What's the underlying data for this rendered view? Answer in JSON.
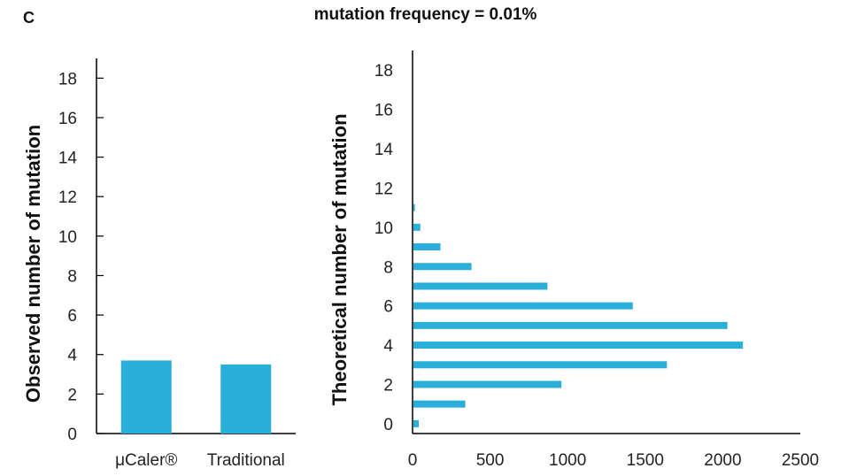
{
  "panel_label": "C",
  "title": "mutation frequency = 0.01%",
  "colors": {
    "bar": "#2aafdb",
    "axis": "#000000"
  },
  "chart_data": [
    {
      "type": "bar",
      "orientation": "vertical",
      "categories": [
        "μCaler®",
        "Traditional"
      ],
      "values": [
        3.7,
        3.5
      ],
      "ylabel": "Observed number of mutation",
      "xlabel": "",
      "ylim": [
        0,
        19
      ],
      "yticks": [
        0,
        2,
        4,
        6,
        8,
        10,
        12,
        14,
        16,
        18
      ],
      "grid": false
    },
    {
      "type": "bar",
      "orientation": "horizontal",
      "categories": [
        0,
        1,
        2,
        3,
        4,
        5,
        6,
        7,
        8,
        9,
        10,
        11
      ],
      "values": [
        40,
        340,
        960,
        1640,
        2130,
        2030,
        1420,
        870,
        380,
        180,
        50,
        15
      ],
      "ylabel": "Theoretical number of mutation",
      "xlabel": "",
      "xlim": [
        0,
        2500
      ],
      "xticks": [
        0,
        500,
        1000,
        1500,
        2000,
        2500
      ],
      "ylim": [
        -0.5,
        19
      ],
      "yticks": [
        0,
        2,
        4,
        6,
        8,
        10,
        12,
        14,
        16,
        18
      ],
      "grid": false
    }
  ]
}
